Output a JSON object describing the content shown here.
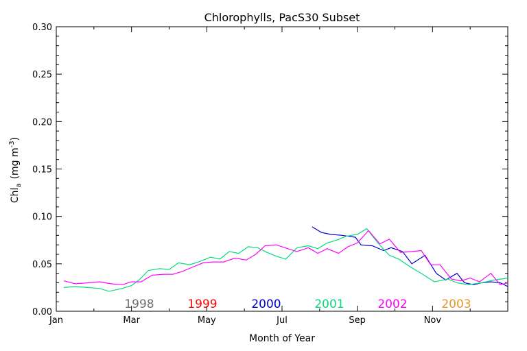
{
  "chart_data": {
    "type": "line",
    "title": "Chlorophylls, PacS30 Subset",
    "xlabel": "Month of Year",
    "ylabel": "Chl",
    "ylabel_sub": "a",
    "ylabel_unit_open": "(mg m",
    "ylabel_unit_sup": "-3",
    "ylabel_unit_close": ")",
    "xlim": [
      0,
      12
    ],
    "ylim": [
      0,
      0.3
    ],
    "x_ticks": [
      {
        "value": 0,
        "label": "Jan"
      },
      {
        "value": 2,
        "label": "Mar"
      },
      {
        "value": 4,
        "label": "May"
      },
      {
        "value": 6,
        "label": "Jul"
      },
      {
        "value": 8,
        "label": "Sep"
      },
      {
        "value": 10,
        "label": "Nov"
      }
    ],
    "y_ticks": [
      {
        "value": 0.0,
        "label": "0.00"
      },
      {
        "value": 0.05,
        "label": "0.05"
      },
      {
        "value": 0.1,
        "label": "0.10"
      },
      {
        "value": 0.15,
        "label": "0.15"
      },
      {
        "value": 0.2,
        "label": "0.20"
      },
      {
        "value": 0.25,
        "label": "0.25"
      },
      {
        "value": 0.3,
        "label": "0.30"
      }
    ],
    "legend_placement": "bottom-inside",
    "series": [
      {
        "name": "1998",
        "color": "#6e6e6e",
        "x": [],
        "y": []
      },
      {
        "name": "1999",
        "color": "#ff0000",
        "x": [],
        "y": []
      },
      {
        "name": "2000",
        "color": "#0000cc",
        "x": [
          6.8,
          7.05,
          7.3,
          7.6,
          7.95,
          8.1,
          8.4,
          8.7,
          8.9,
          9.2,
          9.45,
          9.8,
          10.1,
          10.35,
          10.65,
          10.85,
          11.1,
          11.3,
          11.55,
          11.8,
          12.0
        ],
        "y": [
          0.089,
          0.083,
          0.081,
          0.08,
          0.078,
          0.07,
          0.069,
          0.064,
          0.067,
          0.063,
          0.05,
          0.059,
          0.04,
          0.033,
          0.04,
          0.03,
          0.028,
          0.03,
          0.031,
          0.03,
          0.026
        ]
      },
      {
        "name": "2001",
        "color": "#00dd7a",
        "x": [
          0.2,
          0.5,
          0.85,
          1.15,
          1.4,
          1.75,
          2.0,
          2.2,
          2.45,
          2.75,
          3.0,
          3.25,
          3.55,
          3.85,
          4.1,
          4.35,
          4.6,
          4.85,
          5.1,
          5.35,
          5.6,
          5.85,
          6.1,
          6.4,
          6.7,
          6.95,
          7.2,
          7.45,
          7.7,
          8.0,
          8.25,
          8.55,
          8.85,
          9.1,
          9.4,
          9.7,
          10.05,
          10.4,
          10.65,
          10.95,
          11.3,
          11.65,
          12.0
        ],
        "y": [
          0.025,
          0.026,
          0.025,
          0.024,
          0.021,
          0.024,
          0.027,
          0.033,
          0.043,
          0.045,
          0.044,
          0.051,
          0.049,
          0.053,
          0.057,
          0.055,
          0.063,
          0.061,
          0.068,
          0.067,
          0.062,
          0.058,
          0.055,
          0.067,
          0.069,
          0.066,
          0.072,
          0.075,
          0.079,
          0.081,
          0.087,
          0.072,
          0.059,
          0.055,
          0.047,
          0.04,
          0.031,
          0.034,
          0.03,
          0.028,
          0.03,
          0.033,
          0.035
        ]
      },
      {
        "name": "2002",
        "color": "#ff00ff",
        "x": [
          0.2,
          0.5,
          0.85,
          1.15,
          1.45,
          1.75,
          2.0,
          2.25,
          2.55,
          2.85,
          3.1,
          3.35,
          3.65,
          3.9,
          4.15,
          4.45,
          4.75,
          5.05,
          5.3,
          5.55,
          5.85,
          6.15,
          6.4,
          6.7,
          6.95,
          7.2,
          7.5,
          7.75,
          8.0,
          8.3,
          8.6,
          8.85,
          9.15,
          9.45,
          9.7,
          9.95,
          10.2,
          10.5,
          10.75,
          11.0,
          11.25,
          11.55,
          11.8,
          12.0
        ],
        "y": [
          0.032,
          0.029,
          0.03,
          0.031,
          0.029,
          0.028,
          0.031,
          0.031,
          0.038,
          0.039,
          0.039,
          0.042,
          0.047,
          0.051,
          0.052,
          0.052,
          0.056,
          0.054,
          0.06,
          0.069,
          0.07,
          0.066,
          0.063,
          0.067,
          0.061,
          0.066,
          0.061,
          0.068,
          0.072,
          0.085,
          0.071,
          0.076,
          0.062,
          0.063,
          0.064,
          0.049,
          0.049,
          0.034,
          0.032,
          0.035,
          0.031,
          0.04,
          0.028,
          0.03
        ]
      },
      {
        "name": "2003",
        "color": "#e8962b",
        "x": [],
        "y": []
      }
    ]
  }
}
